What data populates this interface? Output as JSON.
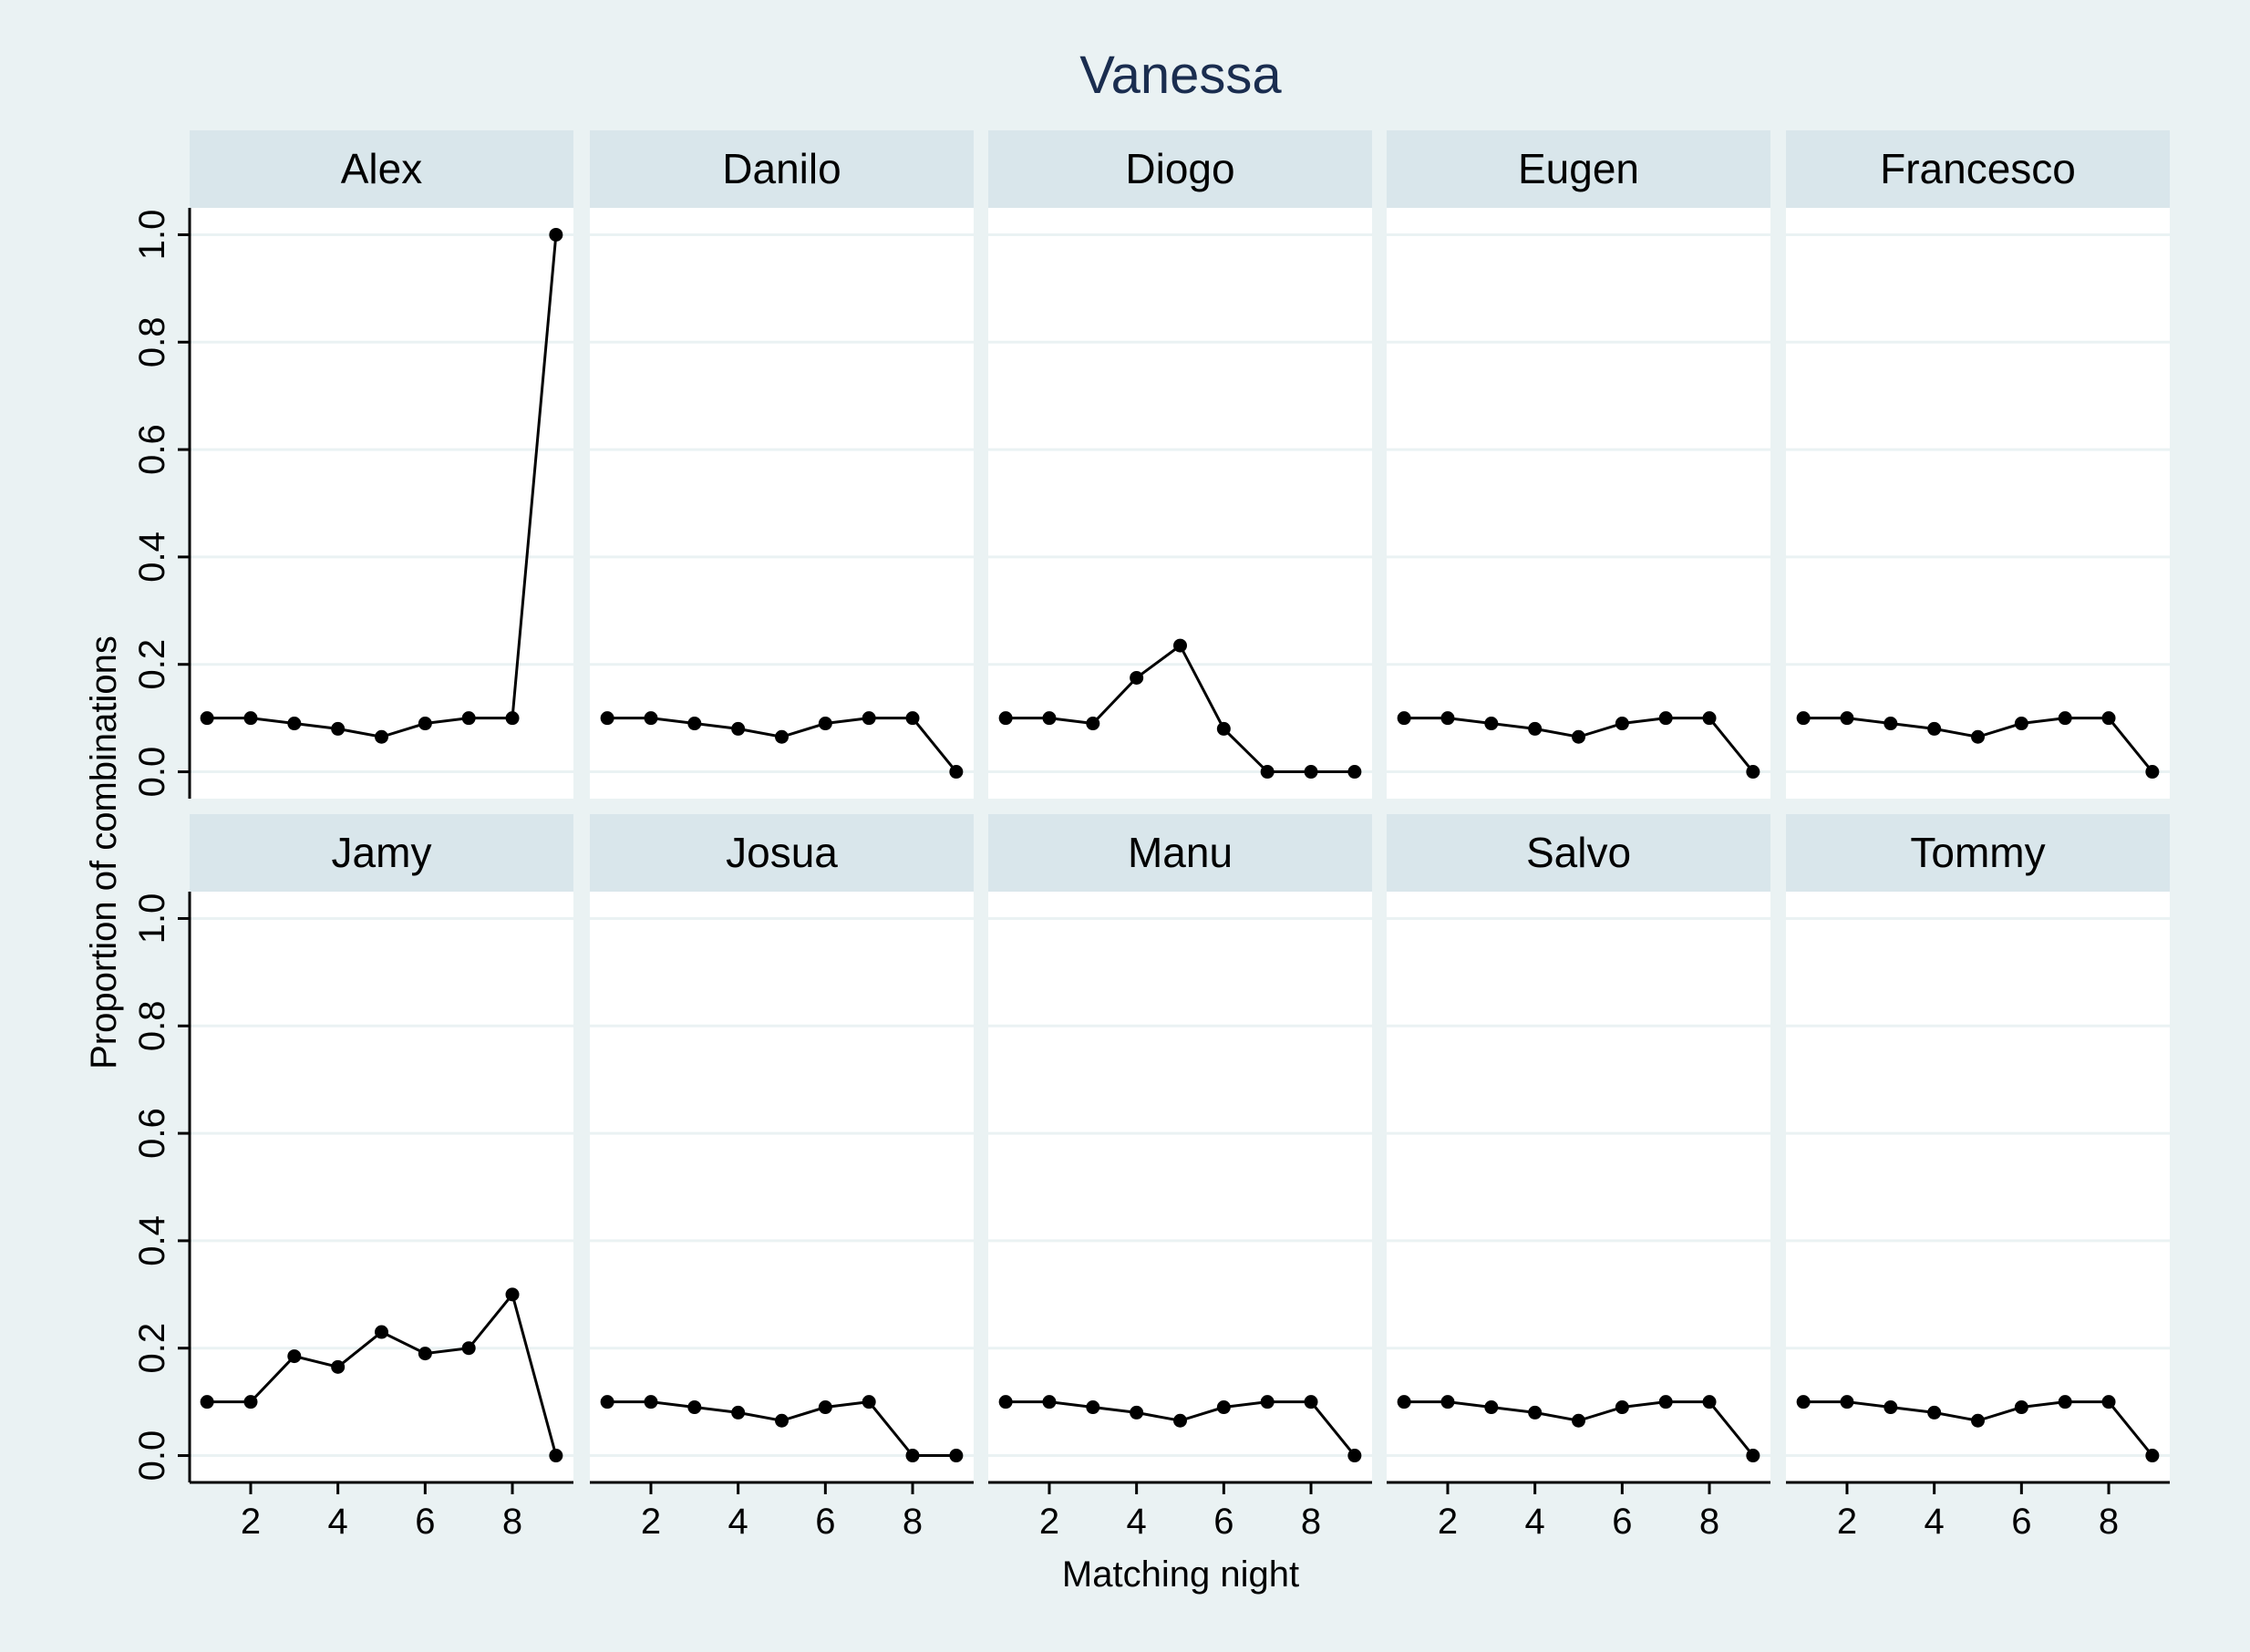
{
  "chart_data": {
    "type": "line",
    "title": "Vanessa",
    "xlabel": "Matching night",
    "ylabel": "Proportion of combinations",
    "x": [
      1,
      2,
      3,
      4,
      5,
      6,
      7,
      8,
      9
    ],
    "xticks": [
      "2",
      "4",
      "6",
      "8"
    ],
    "xtick_values": [
      2,
      4,
      6,
      8
    ],
    "xlim": [
      0.6,
      9.4
    ],
    "yticks": [
      "0.0",
      "0.2",
      "0.4",
      "0.6",
      "0.8",
      "1.0"
    ],
    "ytick_values": [
      0,
      0.2,
      0.4,
      0.6,
      0.8,
      1.0
    ],
    "ylim": [
      -0.05,
      1.05
    ],
    "grid": true,
    "layout": "2 rows x 5 columns",
    "panels": [
      {
        "name": "Alex",
        "values": [
          0.1,
          0.1,
          0.09,
          0.08,
          0.065,
          0.09,
          0.1,
          0.1,
          1.0
        ]
      },
      {
        "name": "Danilo",
        "values": [
          0.1,
          0.1,
          0.09,
          0.08,
          0.065,
          0.09,
          0.1,
          0.1,
          0.0
        ]
      },
      {
        "name": "Diogo",
        "values": [
          0.1,
          0.1,
          0.09,
          0.175,
          0.235,
          0.08,
          0.0,
          0.0,
          0.0
        ]
      },
      {
        "name": "Eugen",
        "values": [
          0.1,
          0.1,
          0.09,
          0.08,
          0.065,
          0.09,
          0.1,
          0.1,
          0.0
        ]
      },
      {
        "name": "Francesco",
        "values": [
          0.1,
          0.1,
          0.09,
          0.08,
          0.065,
          0.09,
          0.1,
          0.1,
          0.0
        ]
      },
      {
        "name": "Jamy",
        "values": [
          0.1,
          0.1,
          0.185,
          0.165,
          0.23,
          0.19,
          0.2,
          0.3,
          0.0
        ]
      },
      {
        "name": "Josua",
        "values": [
          0.1,
          0.1,
          0.09,
          0.08,
          0.065,
          0.09,
          0.1,
          0.0,
          0.0
        ]
      },
      {
        "name": "Manu",
        "values": [
          0.1,
          0.1,
          0.09,
          0.08,
          0.065,
          0.09,
          0.1,
          0.1,
          0.0
        ]
      },
      {
        "name": "Salvo",
        "values": [
          0.1,
          0.1,
          0.09,
          0.08,
          0.065,
          0.09,
          0.1,
          0.1,
          0.0
        ]
      },
      {
        "name": "Tommy",
        "values": [
          0.1,
          0.1,
          0.09,
          0.08,
          0.065,
          0.09,
          0.1,
          0.1,
          0.0
        ]
      }
    ]
  }
}
